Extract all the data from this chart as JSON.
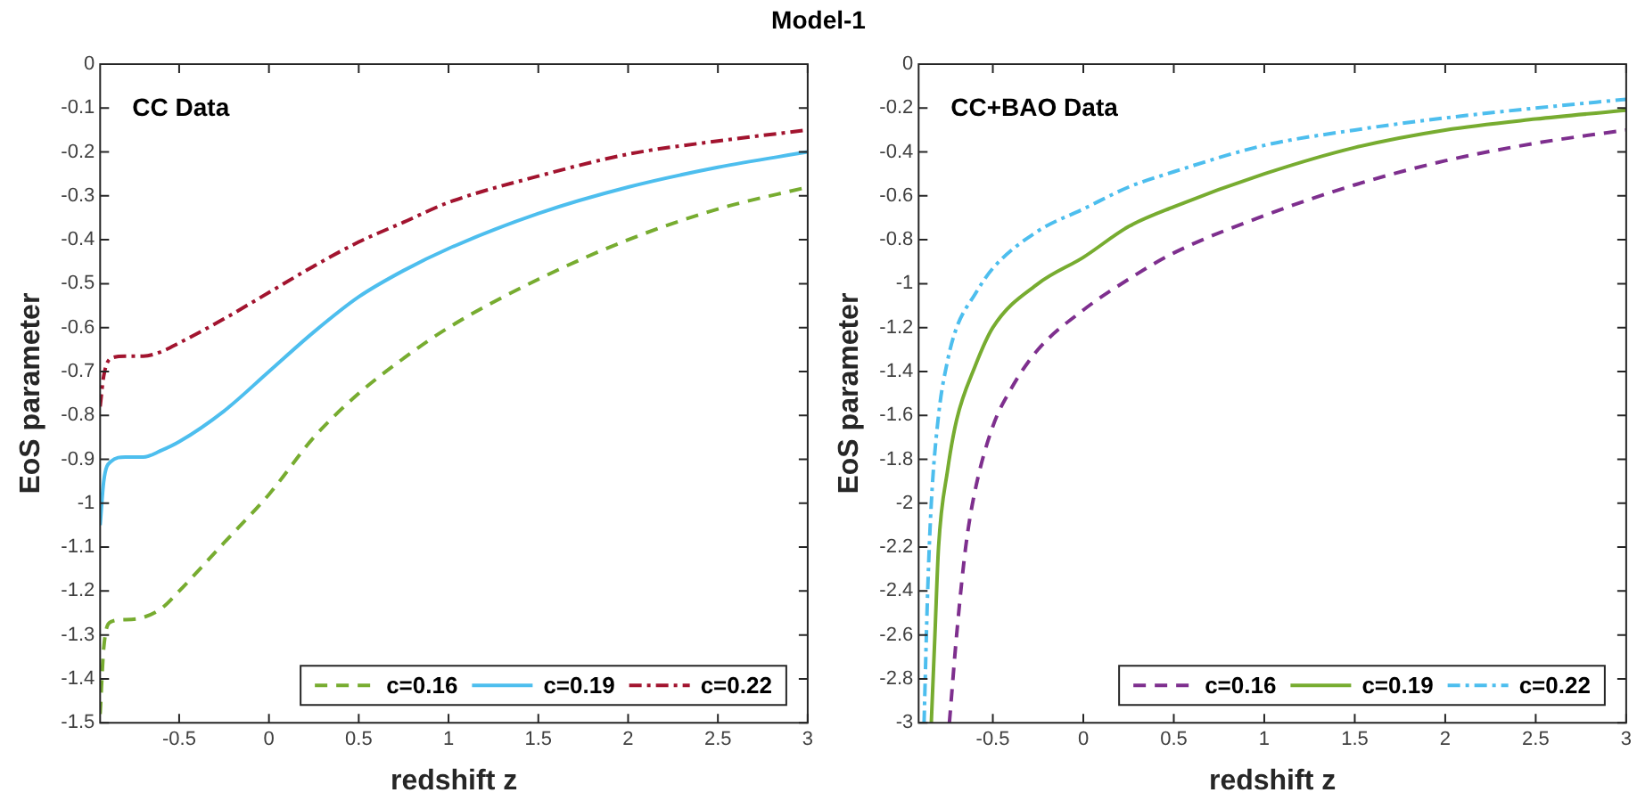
{
  "chart_data": [
    {
      "type": "line",
      "title": "Model-1",
      "xlabel": "redshift z",
      "ylabel": "EoS parameter",
      "annotations": [
        "CC Data"
      ],
      "legend": "bottom right",
      "grid": false,
      "xlim": [
        -0.94,
        3
      ],
      "ylim": [
        -1.5,
        0
      ],
      "xticks": [
        -0.5,
        0,
        0.5,
        1,
        1.5,
        2,
        2.5,
        3
      ],
      "yticks": [
        -1.5,
        -1.4,
        -1.3,
        -1.2,
        -1.1,
        -1,
        -0.9,
        -0.8,
        -0.7,
        -0.6,
        -0.5,
        -0.4,
        -0.3,
        -0.2,
        -0.1,
        0
      ],
      "series": [
        {
          "name": "c=0.16",
          "color": "#77ac30",
          "line_style": "dashed",
          "x": [
            -0.94,
            -0.92,
            -0.88,
            -0.8,
            -0.7,
            -0.6,
            -0.5,
            -0.25,
            0,
            0.25,
            0.5,
            0.75,
            1,
            1.5,
            2,
            2.5,
            3
          ],
          "values": [
            -1.48,
            -1.33,
            -1.27,
            -1.265,
            -1.26,
            -1.24,
            -1.2,
            -1.09,
            -0.98,
            -0.85,
            -0.75,
            -0.67,
            -0.6,
            -0.49,
            -0.4,
            -0.33,
            -0.28
          ]
        },
        {
          "name": "c=0.19",
          "color": "#4dbeee",
          "line_style": "solid",
          "x": [
            -0.94,
            -0.92,
            -0.88,
            -0.8,
            -0.7,
            -0.6,
            -0.5,
            -0.25,
            0,
            0.25,
            0.5,
            0.75,
            1,
            1.5,
            2,
            2.5,
            3
          ],
          "values": [
            -1.05,
            -0.95,
            -0.905,
            -0.895,
            -0.895,
            -0.88,
            -0.86,
            -0.79,
            -0.7,
            -0.61,
            -0.53,
            -0.47,
            -0.42,
            -0.34,
            -0.28,
            -0.235,
            -0.2
          ]
        },
        {
          "name": "c=0.22",
          "color": "#a2142f",
          "line_style": "dashdot",
          "x": [
            -0.94,
            -0.92,
            -0.88,
            -0.8,
            -0.7,
            -0.6,
            -0.5,
            -0.25,
            0,
            0.25,
            0.5,
            0.75,
            1,
            1.5,
            2,
            2.5,
            3
          ],
          "values": [
            -0.78,
            -0.71,
            -0.67,
            -0.665,
            -0.665,
            -0.655,
            -0.635,
            -0.58,
            -0.52,
            -0.46,
            -0.405,
            -0.36,
            -0.315,
            -0.255,
            -0.205,
            -0.175,
            -0.15
          ]
        }
      ]
    },
    {
      "type": "line",
      "xlabel": "redshift z",
      "ylabel": "EoS parameter",
      "annotations": [
        "CC+BAO Data"
      ],
      "legend": "bottom right",
      "grid": false,
      "xlim": [
        -0.91,
        3
      ],
      "ylim": [
        -3,
        0
      ],
      "xticks": [
        -0.5,
        0,
        0.5,
        1,
        1.5,
        2,
        2.5,
        3
      ],
      "yticks": [
        -3,
        -2.8,
        -2.6,
        -2.4,
        -2.2,
        -2,
        -1.8,
        -1.6,
        -1.4,
        -1.2,
        -1,
        -0.8,
        -0.6,
        -0.4,
        -0.2,
        0
      ],
      "series": [
        {
          "name": "c=0.16",
          "color": "#7e2f8e",
          "line_style": "dashed",
          "x": [
            -0.74,
            -0.7,
            -0.65,
            -0.6,
            -0.5,
            -0.4,
            -0.25,
            0,
            0.25,
            0.5,
            1,
            1.5,
            2,
            2.5,
            3
          ],
          "values": [
            -3.0,
            -2.6,
            -2.2,
            -1.95,
            -1.65,
            -1.48,
            -1.3,
            -1.12,
            -0.98,
            -0.86,
            -0.69,
            -0.55,
            -0.44,
            -0.36,
            -0.3
          ]
        },
        {
          "name": "c=0.19",
          "color": "#77ac30",
          "line_style": "solid",
          "x": [
            -0.84,
            -0.82,
            -0.8,
            -0.75,
            -0.7,
            -0.6,
            -0.5,
            -0.25,
            0,
            0.25,
            0.5,
            1,
            1.5,
            2,
            2.5,
            3
          ],
          "values": [
            -3.0,
            -2.6,
            -2.2,
            -1.85,
            -1.62,
            -1.38,
            -1.2,
            -1.0,
            -0.88,
            -0.74,
            -0.65,
            -0.5,
            -0.38,
            -0.3,
            -0.25,
            -0.21
          ]
        },
        {
          "name": "c=0.22",
          "color": "#4dbeee",
          "line_style": "dashdot",
          "x": [
            -0.88,
            -0.86,
            -0.84,
            -0.8,
            -0.75,
            -0.7,
            -0.6,
            -0.5,
            -0.25,
            0,
            0.25,
            0.5,
            1,
            1.5,
            2,
            2.5,
            3
          ],
          "values": [
            -3.0,
            -2.4,
            -2.0,
            -1.6,
            -1.35,
            -1.2,
            -1.05,
            -0.93,
            -0.76,
            -0.66,
            -0.56,
            -0.49,
            -0.37,
            -0.3,
            -0.245,
            -0.2,
            -0.16
          ]
        }
      ]
    }
  ]
}
